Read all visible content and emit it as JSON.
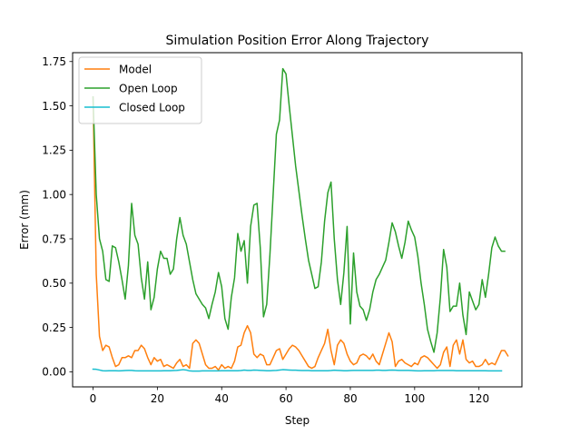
{
  "chart_data": {
    "type": "line",
    "title": "Simulation Position Error Along Trajectory",
    "xlabel": "Step",
    "ylabel": "Error (mm)",
    "xlim": [
      -6.35,
      133.35
    ],
    "ylim": [
      -0.085,
      1.8
    ],
    "xticks": [
      0,
      20,
      40,
      60,
      80,
      100,
      120
    ],
    "xtick_labels": [
      "0",
      "20",
      "40",
      "60",
      "80",
      "100",
      "120"
    ],
    "yticks": [
      0.0,
      0.25,
      0.5,
      0.75,
      1.0,
      1.25,
      1.5,
      1.75
    ],
    "ytick_labels": [
      "0.00",
      "0.25",
      "0.50",
      "0.75",
      "1.00",
      "1.25",
      "1.50",
      "1.75"
    ],
    "grid": false,
    "legend_position": "top-left",
    "series": [
      {
        "name": "Model",
        "color": "#ff7f0e",
        "values": [
          1.55,
          0.55,
          0.2,
          0.12,
          0.15,
          0.14,
          0.08,
          0.03,
          0.04,
          0.08,
          0.08,
          0.09,
          0.08,
          0.12,
          0.12,
          0.15,
          0.13,
          0.08,
          0.04,
          0.08,
          0.06,
          0.07,
          0.03,
          0.04,
          0.03,
          0.02,
          0.05,
          0.07,
          0.03,
          0.04,
          0.02,
          0.16,
          0.18,
          0.16,
          0.1,
          0.04,
          0.02,
          0.02,
          0.03,
          0.01,
          0.04,
          0.02,
          0.03,
          0.02,
          0.06,
          0.14,
          0.15,
          0.22,
          0.26,
          0.22,
          0.1,
          0.08,
          0.1,
          0.09,
          0.04,
          0.04,
          0.08,
          0.12,
          0.13,
          0.07,
          0.1,
          0.13,
          0.15,
          0.14,
          0.12,
          0.09,
          0.06,
          0.03,
          0.02,
          0.03,
          0.08,
          0.12,
          0.16,
          0.24,
          0.12,
          0.04,
          0.15,
          0.18,
          0.16,
          0.1,
          0.06,
          0.04,
          0.05,
          0.09,
          0.1,
          0.09,
          0.07,
          0.1,
          0.06,
          0.04,
          0.1,
          0.16,
          0.22,
          0.17,
          0.03,
          0.06,
          0.07,
          0.05,
          0.04,
          0.03,
          0.05,
          0.04,
          0.08,
          0.09,
          0.08,
          0.06,
          0.04,
          0.02,
          0.04,
          0.11,
          0.14,
          0.03,
          0.15,
          0.18,
          0.1,
          0.18,
          0.07,
          0.05,
          0.06,
          0.03,
          0.03,
          0.04,
          0.07,
          0.04,
          0.05,
          0.04,
          0.08,
          0.12,
          0.12,
          0.09
        ]
      },
      {
        "name": "Open Loop",
        "color": "#2ca02c",
        "values": [
          1.55,
          1.0,
          0.75,
          0.68,
          0.52,
          0.51,
          0.71,
          0.7,
          0.62,
          0.52,
          0.41,
          0.6,
          0.95,
          0.77,
          0.72,
          0.53,
          0.41,
          0.62,
          0.35,
          0.42,
          0.58,
          0.68,
          0.64,
          0.64,
          0.55,
          0.58,
          0.75,
          0.87,
          0.77,
          0.72,
          0.62,
          0.52,
          0.44,
          0.41,
          0.38,
          0.36,
          0.3,
          0.38,
          0.45,
          0.56,
          0.48,
          0.3,
          0.24,
          0.42,
          0.53,
          0.78,
          0.68,
          0.74,
          0.5,
          0.82,
          0.94,
          0.95,
          0.7,
          0.31,
          0.38,
          0.66,
          1.0,
          1.34,
          1.42,
          1.71,
          1.68,
          1.5,
          1.33,
          1.16,
          1.02,
          0.88,
          0.75,
          0.63,
          0.55,
          0.47,
          0.48,
          0.62,
          0.85,
          1.01,
          1.07,
          0.75,
          0.52,
          0.38,
          0.56,
          0.82,
          0.27,
          0.67,
          0.45,
          0.37,
          0.35,
          0.29,
          0.35,
          0.45,
          0.52,
          0.55,
          0.59,
          0.63,
          0.73,
          0.84,
          0.79,
          0.71,
          0.64,
          0.73,
          0.85,
          0.8,
          0.76,
          0.65,
          0.5,
          0.38,
          0.24,
          0.17,
          0.11,
          0.22,
          0.42,
          0.69,
          0.59,
          0.34,
          0.37,
          0.37,
          0.5,
          0.32,
          0.21,
          0.45,
          0.4,
          0.35,
          0.38,
          0.52,
          0.42,
          0.55,
          0.7,
          0.76,
          0.71,
          0.68,
          0.68
        ]
      },
      {
        "name": "Closed Loop",
        "color": "#17becf",
        "values": [
          0.015,
          0.014,
          0.01,
          0.006,
          0.005,
          0.006,
          0.006,
          0.006,
          0.005,
          0.006,
          0.007,
          0.008,
          0.008,
          0.006,
          0.005,
          0.005,
          0.005,
          0.005,
          0.005,
          0.005,
          0.005,
          0.005,
          0.006,
          0.006,
          0.006,
          0.007,
          0.008,
          0.01,
          0.012,
          0.01,
          0.005,
          0.004,
          0.004,
          0.004,
          0.005,
          0.005,
          0.005,
          0.005,
          0.005,
          0.005,
          0.006,
          0.006,
          0.006,
          0.006,
          0.006,
          0.006,
          0.007,
          0.01,
          0.008,
          0.008,
          0.01,
          0.009,
          0.008,
          0.007,
          0.006,
          0.006,
          0.007,
          0.008,
          0.01,
          0.012,
          0.011,
          0.01,
          0.009,
          0.009,
          0.008,
          0.007,
          0.007,
          0.007,
          0.006,
          0.006,
          0.006,
          0.006,
          0.006,
          0.006,
          0.007,
          0.009,
          0.008,
          0.007,
          0.006,
          0.006,
          0.007,
          0.008,
          0.008,
          0.008,
          0.008,
          0.008,
          0.008,
          0.008,
          0.009,
          0.009,
          0.008,
          0.008,
          0.009,
          0.01,
          0.009,
          0.008,
          0.008,
          0.008,
          0.008,
          0.007,
          0.006,
          0.005,
          0.005,
          0.006,
          0.006,
          0.006,
          0.006,
          0.007,
          0.007,
          0.007,
          0.007,
          0.007,
          0.007,
          0.006,
          0.006,
          0.006,
          0.006,
          0.006,
          0.006,
          0.006,
          0.006,
          0.006,
          0.006,
          0.005,
          0.005,
          0.005,
          0.005,
          0.005
        ]
      }
    ]
  }
}
